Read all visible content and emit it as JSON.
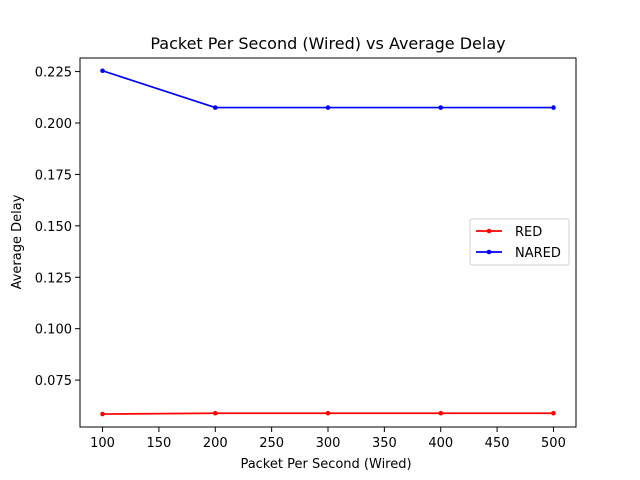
{
  "chart_data": {
    "type": "line",
    "title": "Packet Per Second (Wired)  vs Average Delay",
    "xlabel": "Packet Per Second (Wired)",
    "ylabel": "Average Delay",
    "x": [
      100,
      200,
      300,
      400,
      500
    ],
    "xticks": [
      "100",
      "150",
      "200",
      "250",
      "300",
      "350",
      "400",
      "450",
      "500"
    ],
    "yticks": [
      "0.075",
      "0.100",
      "0.125",
      "0.150",
      "0.175",
      "0.200",
      "0.225"
    ],
    "xlim": [
      80,
      520
    ],
    "ylim": [
      0.0522,
      0.2316
    ],
    "grid": false,
    "legend_position": "center-right",
    "series": [
      {
        "name": "RED",
        "color": "#ff0000",
        "values": [
          0.0585,
          0.0589,
          0.0589,
          0.0589,
          0.0589
        ]
      },
      {
        "name": "NARED",
        "color": "#0000ff",
        "values": [
          0.2254,
          0.2075,
          0.2075,
          0.2075,
          0.2075
        ]
      }
    ]
  }
}
